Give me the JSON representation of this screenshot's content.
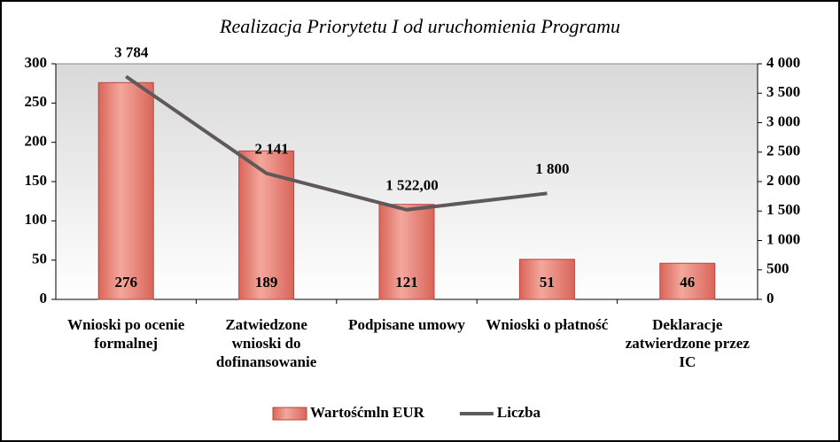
{
  "chart_data": {
    "type": "bar-line",
    "title": "Realizacja Priorytetu I od uruchomienia Programu",
    "categories": [
      "Wnioski po ocenie formalnej",
      "Zatwiedzone wnioski do dofinansowanie",
      "Podpisane umowy",
      "Wnioski o płatność",
      "Deklaracje zatwierdzone przez IC"
    ],
    "series": [
      {
        "name": "Wartośćmln EUR",
        "type": "bar",
        "color": "#e8786a",
        "axis": "y",
        "values": [
          276,
          189,
          121,
          51,
          46
        ]
      },
      {
        "name": "Liczba",
        "type": "line",
        "color": "#5f5959",
        "axis": "y2",
        "values": [
          3784,
          2141,
          1522,
          1800,
          null
        ],
        "value_labels": [
          "3 784",
          "2 141",
          "1 522,00",
          "1 800",
          null
        ]
      }
    ],
    "ylim": [
      0,
      300
    ],
    "yticks": [
      0,
      50,
      100,
      150,
      200,
      250,
      300
    ],
    "y2lim": [
      0,
      4000
    ],
    "y2ticks": [
      0,
      500,
      {
        "value": 1000,
        "label": "1 000"
      },
      {
        "value": 1500,
        "label": "1 500"
      },
      {
        "value": 2000,
        "label": "2 000"
      },
      {
        "value": 2500,
        "label": "2 500"
      },
      {
        "value": 3000,
        "label": "3 000"
      },
      {
        "value": 3500,
        "label": "3 500"
      },
      {
        "value": 4000,
        "label": "4 000"
      }
    ],
    "legend": "bottom"
  }
}
